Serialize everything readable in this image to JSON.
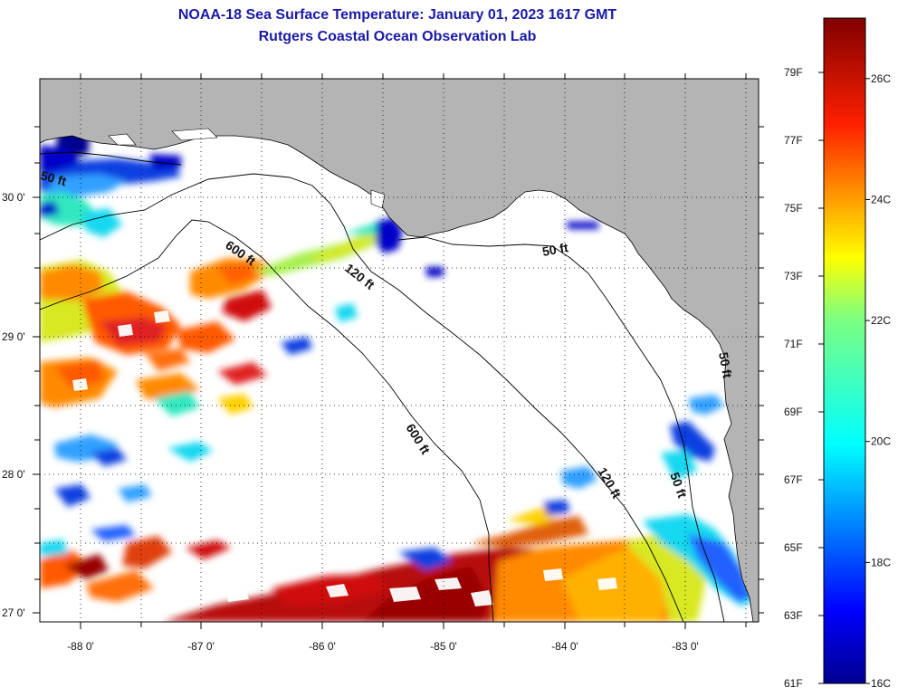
{
  "title": "NOAA-18 Sea Surface Temperature:  January 01, 2023 1617 GMT",
  "subtitle": "Rutgers Coastal Ocean Observation Lab",
  "map": {
    "lat_labels": [
      "30 0'",
      "29 0'",
      "28 0'",
      "27 0'"
    ],
    "lon_labels": [
      "-88 0'",
      "-87 0'",
      "-86 0'",
      "-85 0'",
      "-84 0'",
      "-83 0'"
    ],
    "contour_labels": [
      "600 ft",
      "120 ft",
      "50 ft",
      "600 ft",
      "120 ft",
      "50 ft",
      "50 ft",
      "50 ft"
    ],
    "colors": {
      "land": "#b4b4b4",
      "no_data": "#ffffff",
      "contour": "#000000"
    }
  },
  "colorbar": {
    "fahrenheit_labels": [
      "79F",
      "77F",
      "75F",
      "73F",
      "71F",
      "69F",
      "67F",
      "65F",
      "63F",
      "61F"
    ],
    "celsius_labels": [
      "26C",
      "24C",
      "22C",
      "20C",
      "18C",
      "16C"
    ],
    "range_f": [
      61,
      80.6
    ],
    "range_c": [
      16,
      27
    ]
  }
}
